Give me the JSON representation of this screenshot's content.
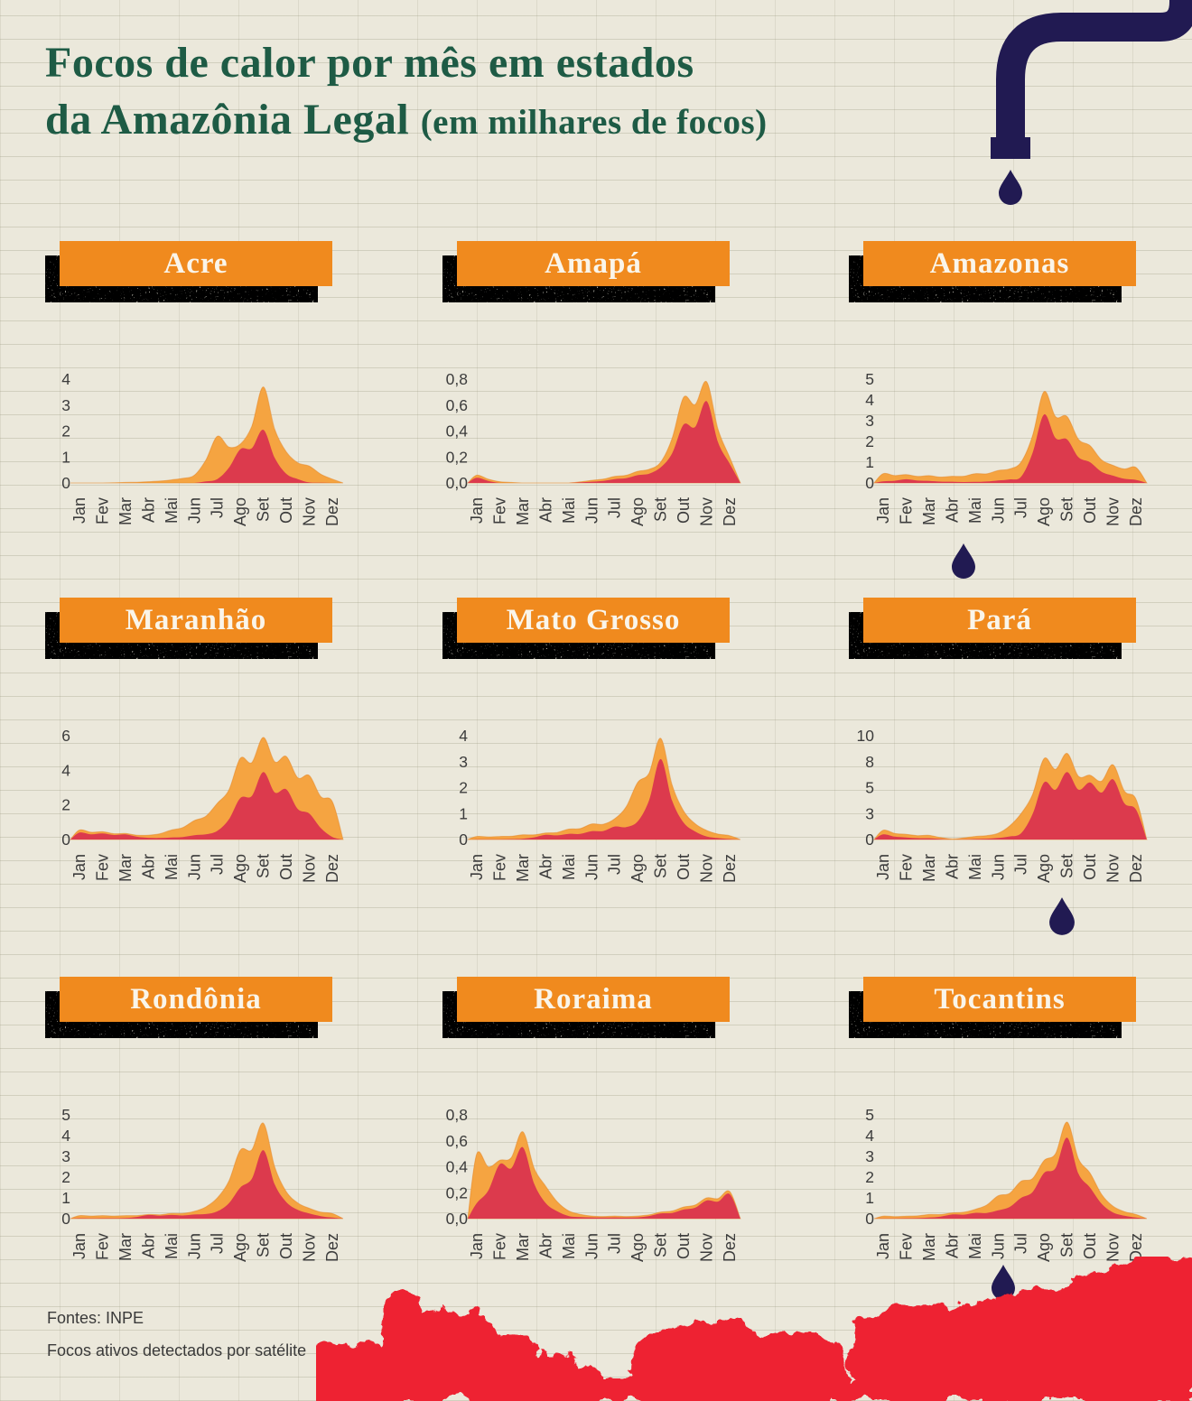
{
  "title": {
    "line1": "Focos de calor por mês em estados",
    "line2": "da Amazônia Legal",
    "line2_suffix": "(em milhares de focos)"
  },
  "footer": {
    "source": "Fontes: INPE",
    "note": "Focos ativos detectados por satélite"
  },
  "colors": {
    "paper": "#ebe8db",
    "band_orange": "#f08a1e",
    "flame_orange": "#f5a441",
    "flame_orange_edge": "#e4821f",
    "flame_red": "#dc3a4d",
    "navy": "#211a52",
    "title_green": "#1e5b45",
    "label_ink": "#3c3c3c",
    "forest_red": "#ee2133"
  },
  "icons": {
    "faucet": "dripping-faucet-icon",
    "drop": "water-drop-icon",
    "forest": "burned-forest-illustration"
  },
  "months": [
    "Jan",
    "Fev",
    "Mar",
    "Abr",
    "Mai",
    "Jun",
    "Jul",
    "Ago",
    "Set",
    "Out",
    "Nov",
    "Dez"
  ],
  "chart_data": [
    {
      "state": "Acre",
      "type": "area",
      "categories": [
        "Jan",
        "Fev",
        "Mar",
        "Abr",
        "Mai",
        "Jun",
        "Jul",
        "Ago",
        "Set",
        "Out",
        "Nov",
        "Dez"
      ],
      "ylim": [
        0,
        4
      ],
      "ytick_labels": [
        "0",
        "1",
        "2",
        "3",
        "4"
      ],
      "ytick_values": [
        0,
        1,
        2,
        3,
        4
      ],
      "series": [
        {
          "name": "outer-orange",
          "color": "#f5a441",
          "values": [
            0,
            0,
            0.02,
            0.05,
            0.12,
            0.3,
            1.8,
            1.5,
            3.7,
            1.2,
            0.65,
            0.15
          ]
        },
        {
          "name": "inner-red",
          "color": "#dc3a4d",
          "values": [
            0,
            0,
            0,
            0,
            0,
            0,
            0.15,
            1.3,
            2.05,
            0.35,
            0.02,
            0
          ]
        }
      ]
    },
    {
      "state": "Amapá",
      "type": "area",
      "categories": [
        "Jan",
        "Fev",
        "Mar",
        "Abr",
        "Mai",
        "Jun",
        "Jul",
        "Ago",
        "Set",
        "Out",
        "Nov",
        "Dez"
      ],
      "ylim": [
        0,
        0.8
      ],
      "ytick_labels": [
        "0,0",
        "0,2",
        "0,4",
        "0,6",
        "0,8"
      ],
      "ytick_values": [
        0,
        0.2,
        0.4,
        0.6,
        0.8
      ],
      "series": [
        {
          "name": "outer-orange",
          "color": "#f5a441",
          "values": [
            0.06,
            0.01,
            0,
            0,
            0,
            0.02,
            0.05,
            0.09,
            0.16,
            0.66,
            0.78,
            0.2
          ]
        },
        {
          "name": "inner-red",
          "color": "#dc3a4d",
          "values": [
            0.04,
            0,
            0,
            0,
            0,
            0.01,
            0.03,
            0.06,
            0.12,
            0.45,
            0.63,
            0.15
          ]
        }
      ]
    },
    {
      "state": "Amazonas",
      "type": "area",
      "categories": [
        "Jan",
        "Fev",
        "Mar",
        "Abr",
        "Mai",
        "Jun",
        "Jul",
        "Ago",
        "Set",
        "Out",
        "Nov",
        "Dez"
      ],
      "ylim": [
        0,
        5
      ],
      "ytick_labels": [
        "0",
        "1",
        "2",
        "3",
        "4",
        "5"
      ],
      "ytick_values": [
        0,
        1,
        2,
        3,
        4,
        5
      ],
      "series": [
        {
          "name": "outer-orange",
          "color": "#f5a441",
          "values": [
            0.45,
            0.4,
            0.35,
            0.32,
            0.45,
            0.6,
            1.0,
            4.4,
            3.2,
            1.8,
            0.85,
            0.75
          ]
        },
        {
          "name": "inner-red",
          "color": "#dc3a4d",
          "values": [
            0.08,
            0.18,
            0.1,
            0.06,
            0.05,
            0.12,
            0.3,
            3.3,
            2.1,
            1.0,
            0.35,
            0.15
          ]
        }
      ]
    },
    {
      "state": "Maranhão",
      "type": "area",
      "categories": [
        "Jan",
        "Fev",
        "Mar",
        "Abr",
        "Mai",
        "Jun",
        "Jul",
        "Ago",
        "Set",
        "Out",
        "Nov",
        "Dez"
      ],
      "ylim": [
        0,
        6
      ],
      "ytick_labels": [
        "0",
        "2",
        "4",
        "6"
      ],
      "ytick_values": [
        0,
        2,
        4,
        6
      ],
      "series": [
        {
          "name": "outer-orange",
          "color": "#f5a441",
          "values": [
            0.55,
            0.45,
            0.35,
            0.25,
            0.55,
            1.1,
            2.1,
            4.7,
            5.9,
            4.8,
            3.7,
            2.2
          ]
        },
        {
          "name": "inner-red",
          "color": "#dc3a4d",
          "values": [
            0.4,
            0.35,
            0.3,
            0.1,
            0.12,
            0.25,
            0.5,
            2.4,
            3.9,
            2.9,
            1.5,
            0.15
          ]
        }
      ]
    },
    {
      "state": "Mato Grosso",
      "type": "area",
      "categories": [
        "Jan",
        "Fev",
        "Mar",
        "Abr",
        "Mai",
        "Jun",
        "Jul",
        "Ago",
        "Set",
        "Out",
        "Nov",
        "Dez"
      ],
      "ylim": [
        0,
        4
      ],
      "ytick_labels": [
        "0",
        "1",
        "2",
        "3",
        "4"
      ],
      "ytick_values": [
        0,
        1,
        2,
        3,
        4
      ],
      "series": [
        {
          "name": "outer-orange",
          "color": "#f5a441",
          "values": [
            0.12,
            0.12,
            0.18,
            0.25,
            0.4,
            0.6,
            0.8,
            2.2,
            3.9,
            1.1,
            0.35,
            0.15
          ]
        },
        {
          "name": "inner-red",
          "color": "#dc3a4d",
          "values": [
            0.01,
            0.01,
            0.03,
            0.18,
            0.22,
            0.32,
            0.5,
            0.7,
            3.1,
            0.65,
            0.12,
            0.02
          ]
        }
      ]
    },
    {
      "state": "Pará",
      "type": "area",
      "categories": [
        "Jan",
        "Fev",
        "Mar",
        "Abr",
        "Mai",
        "Jun",
        "Jul",
        "Ago",
        "Set",
        "Out",
        "Nov",
        "Dez"
      ],
      "ylim": [
        0,
        10
      ],
      "ytick_labels": [
        "0",
        "3",
        "5",
        "8",
        "10"
      ],
      "ytick_values": [
        0,
        2.5,
        5,
        7.5,
        10
      ],
      "series": [
        {
          "name": "outer-orange",
          "color": "#f5a441",
          "values": [
            0.9,
            0.5,
            0.4,
            0.05,
            0.3,
            0.6,
            2.5,
            7.8,
            8.3,
            6.2,
            7.2,
            3.9
          ]
        },
        {
          "name": "inner-red",
          "color": "#dc3a4d",
          "values": [
            0.5,
            0.2,
            0.12,
            0,
            0.05,
            0.15,
            0.6,
            5.5,
            6.5,
            5.5,
            5.8,
            2.9
          ]
        }
      ]
    },
    {
      "state": "Rondônia",
      "type": "area",
      "categories": [
        "Jan",
        "Fev",
        "Mar",
        "Abr",
        "Mai",
        "Jun",
        "Jul",
        "Ago",
        "Set",
        "Out",
        "Nov",
        "Dez"
      ],
      "ylim": [
        0,
        5
      ],
      "ytick_labels": [
        "0",
        "1",
        "2",
        "3",
        "4",
        "5"
      ],
      "ytick_values": [
        0,
        1,
        2,
        3,
        4,
        5
      ],
      "series": [
        {
          "name": "outer-orange",
          "color": "#f5a441",
          "values": [
            0.15,
            0.15,
            0.15,
            0.2,
            0.25,
            0.35,
            1.0,
            3.3,
            4.6,
            1.3,
            0.5,
            0.25
          ]
        },
        {
          "name": "inner-red",
          "color": "#dc3a4d",
          "values": [
            0.02,
            0.02,
            0.03,
            0.18,
            0.18,
            0.2,
            0.35,
            1.5,
            3.3,
            0.8,
            0.25,
            0.05
          ]
        }
      ]
    },
    {
      "state": "Roraima",
      "type": "area",
      "categories": [
        "Jan",
        "Fev",
        "Mar",
        "Abr",
        "Mai",
        "Jun",
        "Jul",
        "Ago",
        "Set",
        "Out",
        "Nov",
        "Dez"
      ],
      "ylim": [
        0,
        0.8
      ],
      "ytick_labels": [
        "0,0",
        "0,2",
        "0,4",
        "0,6",
        "0,8"
      ],
      "ytick_values": [
        0,
        0.2,
        0.4,
        0.6,
        0.8
      ],
      "series": [
        {
          "name": "outer-orange",
          "color": "#f5a441",
          "values": [
            0.5,
            0.45,
            0.67,
            0.25,
            0.06,
            0.02,
            0.02,
            0.02,
            0.05,
            0.09,
            0.16,
            0.21
          ]
        },
        {
          "name": "inner-red",
          "color": "#dc3a4d",
          "values": [
            0.12,
            0.42,
            0.55,
            0.12,
            0.02,
            0.01,
            0.01,
            0.01,
            0.04,
            0.07,
            0.14,
            0.19
          ]
        }
      ]
    },
    {
      "state": "Tocantins",
      "type": "area",
      "categories": [
        "Jan",
        "Fev",
        "Mar",
        "Abr",
        "Mai",
        "Jun",
        "Jul",
        "Ago",
        "Set",
        "Out",
        "Nov",
        "Dez"
      ],
      "ylim": [
        0,
        5
      ],
      "ytick_labels": [
        "0",
        "1",
        "2",
        "3",
        "4",
        "5"
      ],
      "ytick_values": [
        0,
        1,
        2,
        3,
        4,
        5
      ],
      "series": [
        {
          "name": "outer-orange",
          "color": "#f5a441",
          "values": [
            0.12,
            0.12,
            0.2,
            0.28,
            0.45,
            1.1,
            1.8,
            2.8,
            4.65,
            2.2,
            0.6,
            0.2
          ]
        },
        {
          "name": "inner-red",
          "color": "#dc3a4d",
          "values": [
            0.01,
            0.02,
            0.05,
            0.2,
            0.28,
            0.4,
            1.0,
            2.2,
            3.9,
            1.5,
            0.3,
            0.05
          ]
        }
      ]
    }
  ]
}
